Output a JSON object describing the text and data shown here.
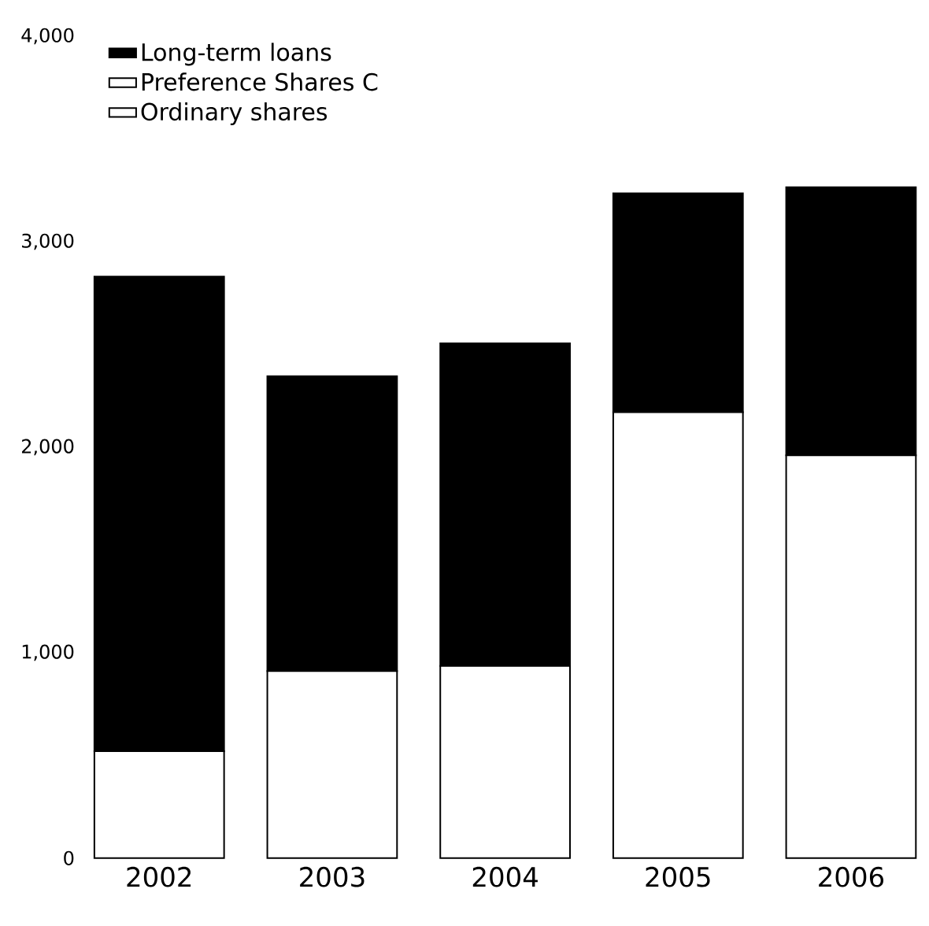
{
  "chart_data": {
    "type": "bar",
    "stacked": true,
    "categories": [
      "2002",
      "2003",
      "2004",
      "2005",
      "2006"
    ],
    "series": [
      {
        "name": "Ordinary shares",
        "color": "#ffffff",
        "values": [
          520,
          910,
          935,
          2170,
          1960
        ]
      },
      {
        "name": "Preference Shares C",
        "color": "#ffffff",
        "values": [
          null,
          null,
          null,
          null,
          null
        ]
      },
      {
        "name": "Long-term loans",
        "color": "#000000",
        "values": [
          2310,
          1435,
          1570,
          1065,
          1305
        ]
      }
    ],
    "ylim": [
      0,
      4000
    ],
    "yticks": [
      0,
      {
        "value": 1000,
        "label": "1,000"
      },
      {
        "value": 2000,
        "label": "2,000"
      },
      {
        "value": 3000,
        "label": "3,000"
      },
      {
        "value": 4000,
        "label": "4,000"
      }
    ],
    "legend": "top left"
  }
}
